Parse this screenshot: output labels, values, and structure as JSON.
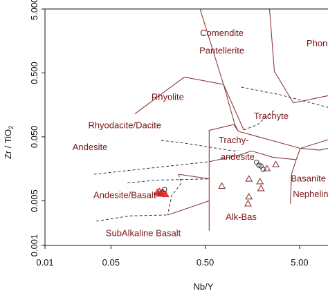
{
  "chart_data": {
    "type": "scatter",
    "title": "",
    "xlabel": "Nb/Y",
    "ylabel": "Zr / TiO",
    "ylabel_sub": "2",
    "xscale": "log",
    "yscale": "log",
    "xlim": [
      0.01,
      10
    ],
    "ylim": [
      0.001,
      5
    ],
    "x_ticks": [
      {
        "value": 0.01,
        "label": "0.01"
      },
      {
        "value": 0.05,
        "label": "0.05"
      },
      {
        "value": 0.5,
        "label": "0.50"
      },
      {
        "value": 5,
        "label": "5.00"
      }
    ],
    "y_ticks": [
      {
        "value": 0.001,
        "label": "0.001"
      },
      {
        "value": 0.005,
        "label": "0.005"
      },
      {
        "value": 0.05,
        "label": "0.050"
      },
      {
        "value": 0.5,
        "label": "0.500"
      },
      {
        "value": 5,
        "label": "5.000"
      }
    ],
    "grid": false,
    "colors": {
      "boundary": "#8b3a3a",
      "label": "#7a1416",
      "red_triangle": "#d32020",
      "open_triangle": "#8b3a3a",
      "circle": "#333333"
    },
    "fields": [
      {
        "name": "Comendite",
        "x": 0.75,
        "y": 1.9
      },
      {
        "name": "Pantellerite",
        "x": 0.75,
        "y": 1.0
      },
      {
        "name": "Phonolit",
        "x": 8.8,
        "y": 1.3
      },
      {
        "name": "Rhyolite",
        "x": 0.2,
        "y": 0.19
      },
      {
        "name": "Trachyte",
        "x": 2.5,
        "y": 0.095
      },
      {
        "name": "Rhyodacite/Dacite",
        "x": 0.07,
        "y": 0.068
      },
      {
        "name": "Andesite",
        "x": 0.03,
        "y": 0.031
      },
      {
        "name": "Trachy-",
        "x": 1.0,
        "y": 0.04
      },
      {
        "name": "andesite",
        "x": 1.1,
        "y": 0.022
      },
      {
        "name": "Basanite",
        "x": 6.2,
        "y": 0.01
      },
      {
        "name": "Nephelini",
        "x": 6.7,
        "y": 0.0057
      },
      {
        "name": "Andesite/Basalt",
        "x": 0.07,
        "y": 0.0055
      },
      {
        "name": "Alk-Bas",
        "x": 1.2,
        "y": 0.0025
      },
      {
        "name": "SubAlkaline Basalt",
        "x": 0.11,
        "y": 0.0014
      }
    ],
    "boundaries": [
      [
        [
          0.44,
          5
        ],
        [
          0.6,
          1.15
        ],
        [
          0.78,
          0.33
        ],
        [
          1.03,
          0.078
        ],
        [
          1.12,
          0.061
        ]
      ],
      [
        [
          0.09,
          0.115
        ],
        [
          0.3,
          0.43
        ],
        [
          0.78,
          0.33
        ]
      ],
      [
        [
          0.78,
          0.33
        ],
        [
          1.28,
          0.064
        ]
      ],
      [
        [
          2.4,
          5
        ],
        [
          2.7,
          0.53
        ],
        [
          4.3,
          0.17
        ],
        [
          10,
          0.22
        ]
      ],
      [
        [
          0.55,
          0.005
        ],
        [
          0.55,
          0.063
        ],
        [
          1.0,
          0.078
        ],
        [
          1.12,
          0.061
        ]
      ],
      [
        [
          1.12,
          0.061
        ],
        [
          5.1,
          0.033
        ],
        [
          10,
          0.045
        ]
      ],
      [
        [
          5.1,
          0.033
        ],
        [
          4.6,
          0.022
        ],
        [
          4.1,
          0.013
        ],
        [
          4.0,
          0.0045
        ]
      ],
      [
        [
          5.1,
          0.033
        ],
        [
          8.2,
          0.031
        ],
        [
          10,
          0.033
        ]
      ],
      [
        [
          0.55,
          0.0017
        ],
        [
          0.55,
          0.005
        ]
      ],
      [
        [
          0.55,
          0.011
        ],
        [
          0.26,
          0.013
        ]
      ],
      [
        [
          0.55,
          0.0204
        ],
        [
          1.15,
          0.026
        ],
        [
          1.55,
          0.03
        ],
        [
          2.6,
          0.024
        ],
        [
          4.6,
          0.022
        ]
      ],
      [
        [
          0.2,
          0.003
        ],
        [
          0.55,
          0.005
        ]
      ]
    ],
    "dashed_boundaries": [
      [
        [
          1.2,
          0.3
        ],
        [
          3.0,
          0.23
        ],
        [
          10,
          0.145
        ]
      ],
      [
        [
          1.28,
          0.064
        ],
        [
          1.8,
          0.078
        ],
        [
          2.3,
          0.11
        ],
        [
          2.7,
          0.13
        ]
      ],
      [
        [
          0.17,
          0.044
        ],
        [
          0.3,
          0.04
        ],
        [
          1.0,
          0.03
        ],
        [
          1.12,
          0.031
        ]
      ],
      [
        [
          0.033,
          0.013
        ],
        [
          0.08,
          0.015
        ],
        [
          0.55,
          0.0204
        ]
      ],
      [
        [
          0.075,
          0.0095
        ],
        [
          0.15,
          0.0105
        ],
        [
          0.55,
          0.011
        ]
      ],
      [
        [
          0.035,
          0.0024
        ],
        [
          0.08,
          0.0029
        ],
        [
          0.2,
          0.003
        ]
      ],
      [
        [
          0.26,
          0.013
        ],
        [
          0.28,
          0.0095
        ],
        [
          0.22,
          0.006
        ],
        [
          0.2,
          0.003
        ]
      ]
    ],
    "series": [
      {
        "marker": "filled-triangle",
        "color": "#d32020",
        "points": [
          [
            0.155,
            0.0068
          ],
          [
            0.163,
            0.007
          ],
          [
            0.17,
            0.0066
          ],
          [
            0.176,
            0.0069
          ],
          [
            0.182,
            0.0065
          ],
          [
            0.19,
            0.0063
          ],
          [
            0.16,
            0.0064
          ]
        ]
      },
      {
        "marker": "open-triangle",
        "color": "#8b3a3a",
        "points": [
          [
            0.75,
            0.0085
          ],
          [
            1.45,
            0.011
          ],
          [
            1.45,
            0.0058
          ],
          [
            1.42,
            0.0045
          ],
          [
            1.9,
            0.01
          ],
          [
            1.95,
            0.0078
          ],
          [
            2.25,
            0.016
          ],
          [
            2.8,
            0.0185
          ]
        ]
      },
      {
        "marker": "open-circle",
        "color": "#333333",
        "points": [
          [
            0.185,
            0.0075
          ],
          [
            1.75,
            0.02
          ],
          [
            1.85,
            0.018
          ],
          [
            1.95,
            0.0175
          ],
          [
            2.05,
            0.0155
          ]
        ]
      }
    ]
  }
}
